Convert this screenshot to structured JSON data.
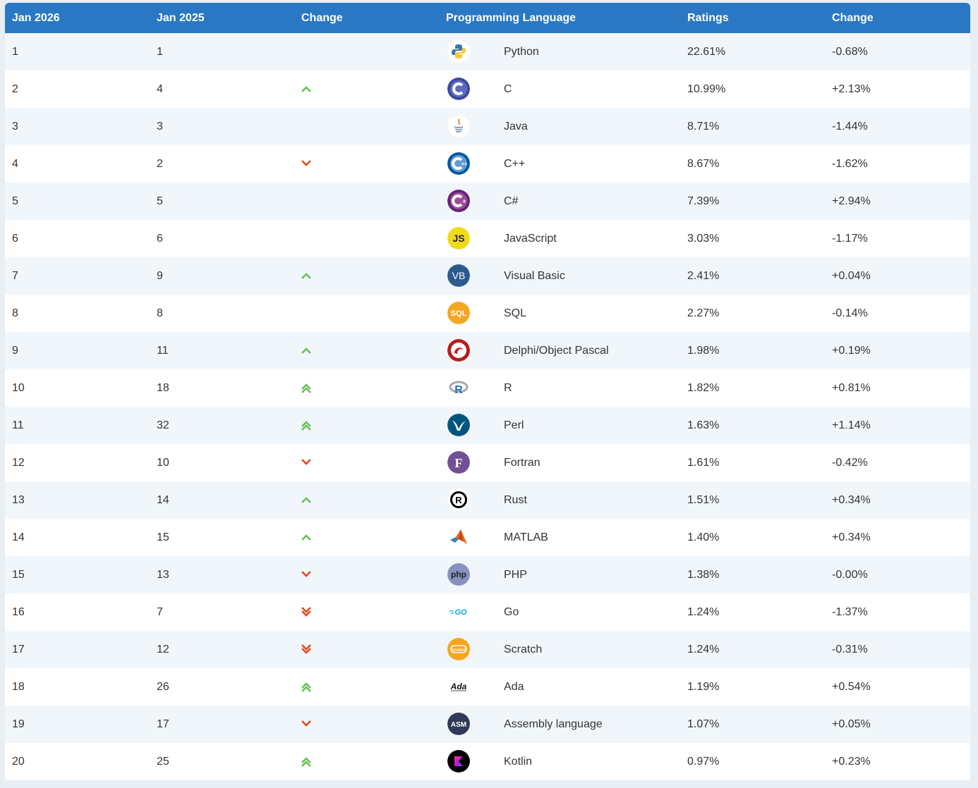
{
  "header": {
    "col_now": "Jan 2026",
    "col_prev": "Jan 2025",
    "col_change": "Change",
    "col_language": "Programming Language",
    "col_ratings": "Ratings",
    "col_rating_change": "Change"
  },
  "colors": {
    "header_bg": "#2a78c3",
    "up": "#6abf5b",
    "down": "#e04b1f",
    "row_alt": "#f1f6fa"
  },
  "rows": [
    {
      "now": "1",
      "prev": "1",
      "trend": "none",
      "icon": "python-icon",
      "language": "Python",
      "rating": "22.61%",
      "change": "-0.68%"
    },
    {
      "now": "2",
      "prev": "4",
      "trend": "up",
      "icon": "c-icon",
      "language": "C",
      "rating": "10.99%",
      "change": "+2.13%"
    },
    {
      "now": "3",
      "prev": "3",
      "trend": "none",
      "icon": "java-icon",
      "language": "Java",
      "rating": "8.71%",
      "change": "-1.44%"
    },
    {
      "now": "4",
      "prev": "2",
      "trend": "down",
      "icon": "cpp-icon",
      "language": "C++",
      "rating": "8.67%",
      "change": "-1.62%"
    },
    {
      "now": "5",
      "prev": "5",
      "trend": "none",
      "icon": "csharp-icon",
      "language": "C#",
      "rating": "7.39%",
      "change": "+2.94%"
    },
    {
      "now": "6",
      "prev": "6",
      "trend": "none",
      "icon": "javascript-icon",
      "language": "JavaScript",
      "rating": "3.03%",
      "change": "-1.17%"
    },
    {
      "now": "7",
      "prev": "9",
      "trend": "up",
      "icon": "visual-basic-icon",
      "language": "Visual Basic",
      "rating": "2.41%",
      "change": "+0.04%"
    },
    {
      "now": "8",
      "prev": "8",
      "trend": "none",
      "icon": "sql-icon",
      "language": "SQL",
      "rating": "2.27%",
      "change": "-0.14%"
    },
    {
      "now": "9",
      "prev": "11",
      "trend": "up",
      "icon": "delphi-icon",
      "language": "Delphi/Object Pascal",
      "rating": "1.98%",
      "change": "+0.19%"
    },
    {
      "now": "10",
      "prev": "18",
      "trend": "up2",
      "icon": "r-icon",
      "language": "R",
      "rating": "1.82%",
      "change": "+0.81%"
    },
    {
      "now": "11",
      "prev": "32",
      "trend": "up2",
      "icon": "perl-icon",
      "language": "Perl",
      "rating": "1.63%",
      "change": "+1.14%"
    },
    {
      "now": "12",
      "prev": "10",
      "trend": "down",
      "icon": "fortran-icon",
      "language": "Fortran",
      "rating": "1.61%",
      "change": "-0.42%"
    },
    {
      "now": "13",
      "prev": "14",
      "trend": "up",
      "icon": "rust-icon",
      "language": "Rust",
      "rating": "1.51%",
      "change": "+0.34%"
    },
    {
      "now": "14",
      "prev": "15",
      "trend": "up",
      "icon": "matlab-icon",
      "language": "MATLAB",
      "rating": "1.40%",
      "change": "+0.34%"
    },
    {
      "now": "15",
      "prev": "13",
      "trend": "down",
      "icon": "php-icon",
      "language": "PHP",
      "rating": "1.38%",
      "change": "-0.00%"
    },
    {
      "now": "16",
      "prev": "7",
      "trend": "down2",
      "icon": "go-icon",
      "language": "Go",
      "rating": "1.24%",
      "change": "-1.37%"
    },
    {
      "now": "17",
      "prev": "12",
      "trend": "down2",
      "icon": "scratch-icon",
      "language": "Scratch",
      "rating": "1.24%",
      "change": "-0.31%"
    },
    {
      "now": "18",
      "prev": "26",
      "trend": "up2",
      "icon": "ada-icon",
      "language": "Ada",
      "rating": "1.19%",
      "change": "+0.54%"
    },
    {
      "now": "19",
      "prev": "17",
      "trend": "down",
      "icon": "assembly-icon",
      "language": "Assembly language",
      "rating": "1.07%",
      "change": "+0.05%"
    },
    {
      "now": "20",
      "prev": "25",
      "trend": "up2",
      "icon": "kotlin-icon",
      "language": "Kotlin",
      "rating": "0.97%",
      "change": "+0.23%"
    }
  ],
  "logo_text": {
    "js": "JS",
    "vb": "VB",
    "sql": "SQL",
    "php": "php",
    "go": "GO",
    "ada": "Ada",
    "asm": "ASM",
    "fortran": "F",
    "r": "R",
    "rust": "R",
    "scratch": "Scratch"
  }
}
